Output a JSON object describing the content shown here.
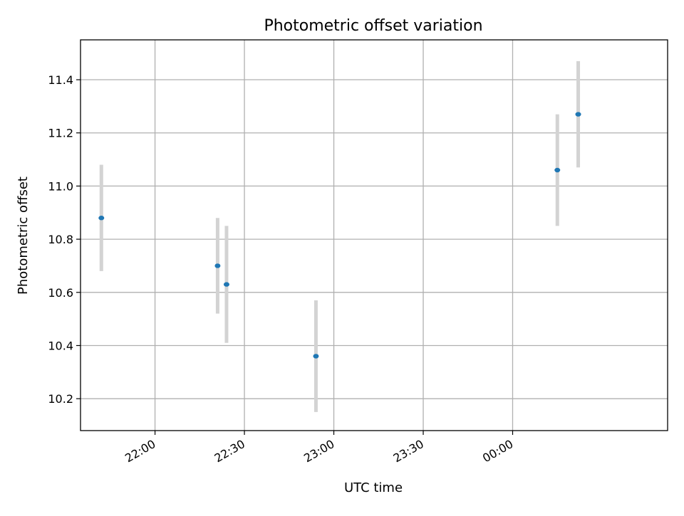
{
  "chart_data": {
    "type": "scatter",
    "title": "Photometric offset variation",
    "xlabel": "UTC time",
    "ylabel": "Photometric offset",
    "x_ticks": [
      "22:00",
      "22:30",
      "23:00",
      "23:30",
      "00:00"
    ],
    "y_ticks": [
      "10.2",
      "10.4",
      "10.6",
      "10.8",
      "11.0",
      "11.2",
      "11.4"
    ],
    "x_domain": [
      "21:35",
      "00:52"
    ],
    "ylim": [
      10.08,
      11.55
    ],
    "grid": true,
    "points": [
      {
        "time": "21:42",
        "offset": 10.88,
        "err": 0.2
      },
      {
        "time": "22:21",
        "offset": 10.7,
        "err": 0.18
      },
      {
        "time": "22:24",
        "offset": 10.63,
        "err": 0.22
      },
      {
        "time": "22:54",
        "offset": 10.36,
        "err": 0.21
      },
      {
        "time": "00:15",
        "offset": 11.06,
        "err": 0.21
      },
      {
        "time": "00:22",
        "offset": 11.27,
        "err": 0.2
      }
    ],
    "colors": {
      "point": "#1f77b4",
      "errorbar": "#d3d3d3",
      "grid": "#b0b0b0"
    }
  }
}
